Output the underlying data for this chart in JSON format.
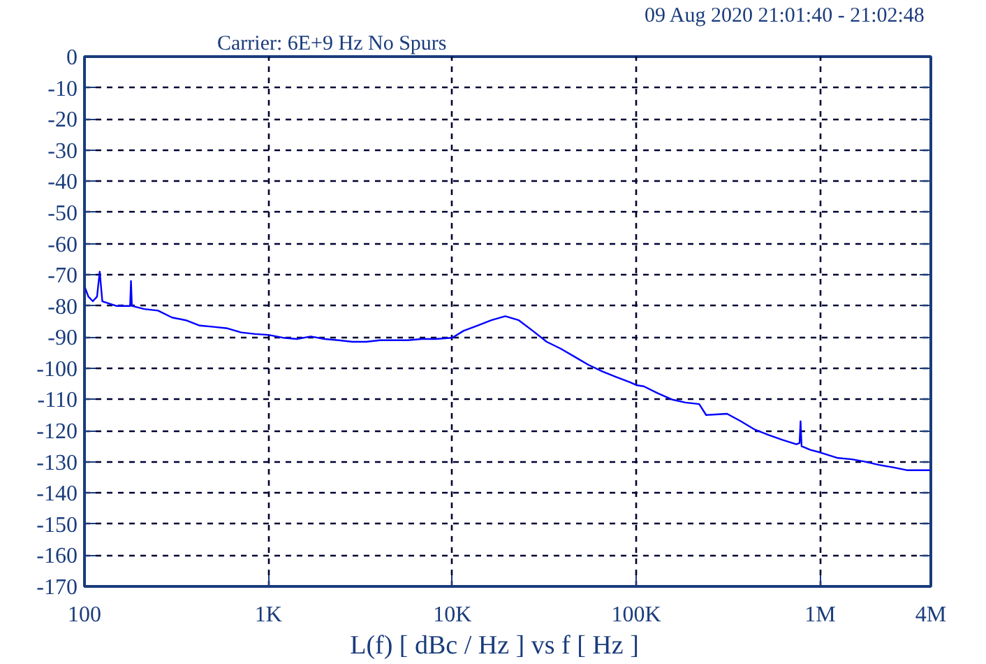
{
  "chart_data": {
    "type": "line",
    "title": "Carrier: 6E+9 Hz   No Spurs",
    "subtitle": "09 Aug 2020  21:01:40 - 21:02:48",
    "xlabel": "L(f)  [ dBc / Hz ]  vs  f  [ Hz ]",
    "log": "x",
    "grid": true,
    "marker": "none",
    "line_style": "solid",
    "xlim": [
      100,
      4000000
    ],
    "ylim": [
      -170,
      0
    ],
    "xticks": [
      {
        "value": 100,
        "label": "100"
      },
      {
        "value": 1000,
        "label": "1K"
      },
      {
        "value": 10000,
        "label": "10K"
      },
      {
        "value": 100000,
        "label": "100K"
      },
      {
        "value": 1000000,
        "label": "1M"
      },
      {
        "value": 4000000,
        "label": "4M"
      }
    ],
    "yticks": [
      -170,
      -160,
      -150,
      -140,
      -130,
      -120,
      -110,
      -100,
      -90,
      -80,
      -70,
      -60,
      -50,
      -40,
      -30,
      -20,
      -10,
      0
    ],
    "series": [
      {
        "color": "#0000ff",
        "x": [
          100,
          105,
          111,
          117,
          121,
          125,
          149,
          177,
          179,
          181,
          211,
          251,
          299,
          356,
          423,
          503,
          599,
          712,
          847,
          1000,
          1200,
          1430,
          1700,
          2020,
          2400,
          2860,
          3400,
          4050,
          4820,
          5730,
          6820,
          8110,
          10000,
          11500,
          13700,
          16300,
          19400,
          23000,
          27400,
          32600,
          38800,
          46200,
          55000,
          65400,
          77800,
          92500,
          100000,
          110000,
          131000,
          156000,
          185000,
          220000,
          240000,
          312000,
          371000,
          442000,
          525000,
          625000,
          743000,
          773000,
          783000,
          793000,
          885000,
          1000000,
          1250000,
          1490000,
          1760000,
          2090000,
          2490000,
          2960000,
          4000000
        ],
        "values": [
          -73.7,
          -77,
          -78.5,
          -77,
          -69,
          -78.5,
          -80,
          -80,
          -72,
          -80,
          -81,
          -81.5,
          -83.7,
          -84.6,
          -86.3,
          -86.7,
          -87.2,
          -88.5,
          -89,
          -89.3,
          -90.2,
          -90.6,
          -89.8,
          -90.6,
          -91,
          -91.5,
          -91.5,
          -91,
          -91,
          -91,
          -90.6,
          -90.6,
          -90.2,
          -88,
          -86.3,
          -84.6,
          -83.3,
          -84.6,
          -88,
          -91.5,
          -93.7,
          -96.3,
          -98.9,
          -101,
          -102.8,
          -104.5,
          -105.4,
          -105.8,
          -108,
          -110,
          -111,
          -111.5,
          -115,
          -114.6,
          -117,
          -119.7,
          -121.4,
          -123,
          -124.4,
          -124,
          -117,
          -125,
          -126.2,
          -127,
          -128.8,
          -129.2,
          -130,
          -131,
          -131.8,
          -132.7,
          -132.7
        ]
      }
    ]
  }
}
